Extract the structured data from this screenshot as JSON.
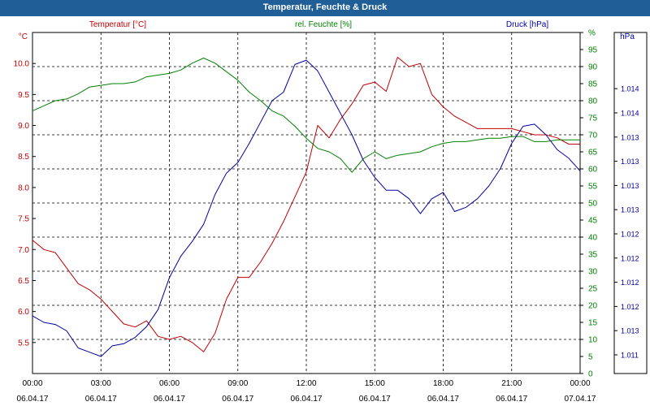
{
  "window": {
    "title": "Temperatur, Feuchte & Druck"
  },
  "colors": {
    "titlebar": "#1f5e96",
    "temperature": "#c00000",
    "humidity": "#008000",
    "pressure": "#0000a0",
    "grid": "#000000"
  },
  "chart_data": {
    "type": "line",
    "grid": true,
    "x_range": [
      "06.04.17 00:00",
      "07.04.17 00:00"
    ],
    "x_ticks": [
      {
        "time": "00:00",
        "date": "06.04.17"
      },
      {
        "time": "03:00",
        "date": "06.04.17"
      },
      {
        "time": "06:00",
        "date": "06.04.17"
      },
      {
        "time": "09:00",
        "date": "06.04.17"
      },
      {
        "time": "12:00",
        "date": "06.04.17"
      },
      {
        "time": "15:00",
        "date": "06.04.17"
      },
      {
        "time": "18:00",
        "date": "06.04.17"
      },
      {
        "time": "21:00",
        "date": "06.04.17"
      },
      {
        "time": "00:00",
        "date": "07.04.17"
      }
    ],
    "series": [
      {
        "name": "Temperatur [°C]",
        "axis": "left",
        "x": [
          0,
          0.5,
          1,
          1.5,
          2,
          2.5,
          3,
          3.5,
          4,
          4.5,
          5,
          5.5,
          6,
          6.5,
          7,
          7.5,
          8,
          8.5,
          9,
          9.5,
          10,
          10.5,
          11,
          11.5,
          12,
          12.5,
          13,
          13.5,
          14,
          14.5,
          15,
          15.5,
          16,
          16.5,
          17,
          17.5,
          18,
          18.5,
          19,
          19.5,
          20,
          20.5,
          21,
          21.5,
          22,
          22.5,
          23,
          23.5,
          24
        ],
        "values": [
          7.15,
          7.0,
          6.95,
          6.7,
          6.45,
          6.35,
          6.2,
          6.0,
          5.8,
          5.75,
          5.85,
          5.6,
          5.55,
          5.6,
          5.5,
          5.35,
          5.65,
          6.2,
          6.55,
          6.55,
          6.8,
          7.1,
          7.45,
          7.85,
          8.25,
          9.0,
          8.8,
          9.1,
          9.35,
          9.65,
          9.7,
          9.55,
          10.1,
          9.95,
          10.0,
          9.5,
          9.3,
          9.15,
          9.05,
          8.95,
          8.95,
          8.95,
          8.95,
          8.9,
          8.85,
          8.85,
          8.8,
          8.7,
          8.7
        ]
      },
      {
        "name": "rel. Feuchte [%]",
        "axis": "right",
        "x": [
          0,
          0.5,
          1,
          1.5,
          2,
          2.5,
          3,
          3.5,
          4,
          4.5,
          5,
          5.5,
          6,
          6.5,
          7,
          7.5,
          8,
          8.5,
          9,
          9.5,
          10,
          10.5,
          11,
          11.5,
          12,
          12.5,
          13,
          13.5,
          14,
          14.5,
          15,
          15.5,
          16,
          16.5,
          17,
          17.5,
          18,
          18.5,
          19,
          19.5,
          20,
          20.5,
          21,
          21.5,
          22,
          22.5,
          23,
          23.5,
          24
        ],
        "values": [
          77,
          78.5,
          80,
          80.5,
          82,
          84,
          84.5,
          85,
          85,
          85.5,
          87,
          87.5,
          88,
          89,
          91,
          92.5,
          91,
          88.5,
          86,
          82.5,
          80,
          77,
          75.5,
          72.5,
          69,
          66,
          65,
          63,
          59,
          63,
          65,
          63,
          64,
          64.5,
          65,
          66.5,
          67.5,
          68,
          68,
          68.5,
          69,
          69,
          69.5,
          69.5,
          68,
          68,
          68.5,
          68.5,
          68.5
        ]
      },
      {
        "name": "Druck [hPa]",
        "axis": "far-right",
        "x": [
          0,
          0.5,
          1,
          1.5,
          2,
          2.5,
          3,
          3.5,
          4,
          4.5,
          5,
          5.5,
          6,
          6.5,
          7,
          7.5,
          8,
          8.5,
          9,
          9.5,
          10,
          10.5,
          11,
          11.5,
          12,
          12.5,
          13,
          13.5,
          14,
          14.5,
          15,
          15.5,
          16,
          16.5,
          17,
          17.5,
          18,
          18.5,
          19,
          19.5,
          20,
          20.5,
          21,
          21.5,
          22,
          22.5,
          23,
          23.5,
          24
        ],
        "values": [
          1011.27,
          1011.24,
          1011.23,
          1011.2,
          1011.12,
          1011.1,
          1011.08,
          1011.13,
          1011.14,
          1011.17,
          1011.22,
          1011.3,
          1011.45,
          1011.55,
          1011.62,
          1011.7,
          1011.84,
          1011.94,
          1011.99,
          1012.08,
          1012.18,
          1012.28,
          1012.32,
          1012.45,
          1012.47,
          1012.42,
          1012.32,
          1012.22,
          1012.12,
          1012.0,
          1011.92,
          1011.86,
          1011.86,
          1011.82,
          1011.75,
          1011.82,
          1011.85,
          1011.76,
          1011.78,
          1011.82,
          1011.88,
          1011.96,
          1012.08,
          1012.16,
          1012.17,
          1012.12,
          1012.05,
          1012.01,
          1011.95
        ]
      }
    ],
    "y_left": {
      "label": "°C",
      "range": [
        5.0,
        10.5
      ],
      "ticks": [
        "5.5",
        "6.0",
        "6.5",
        "7.0",
        "7.5",
        "8.0",
        "8.5",
        "9.0",
        "9.5",
        "10.0"
      ]
    },
    "y_right": {
      "label": "%",
      "range": [
        0,
        100
      ],
      "ticks": [
        "0",
        "5",
        "10",
        "15",
        "20",
        "25",
        "30",
        "35",
        "40",
        "45",
        "50",
        "55",
        "60",
        "65",
        "70",
        "75",
        "80",
        "85",
        "90",
        "95",
        "%"
      ]
    },
    "y_far_right": {
      "label": "hPa",
      "range": [
        1011.0,
        1012.6
      ],
      "ticks": [
        "1.011",
        "1.013",
        "1.012",
        "1.012",
        "1.012",
        "1.012",
        "1.013",
        "1.013",
        "1.013",
        "1.013",
        "1.014",
        "1.014"
      ]
    }
  }
}
